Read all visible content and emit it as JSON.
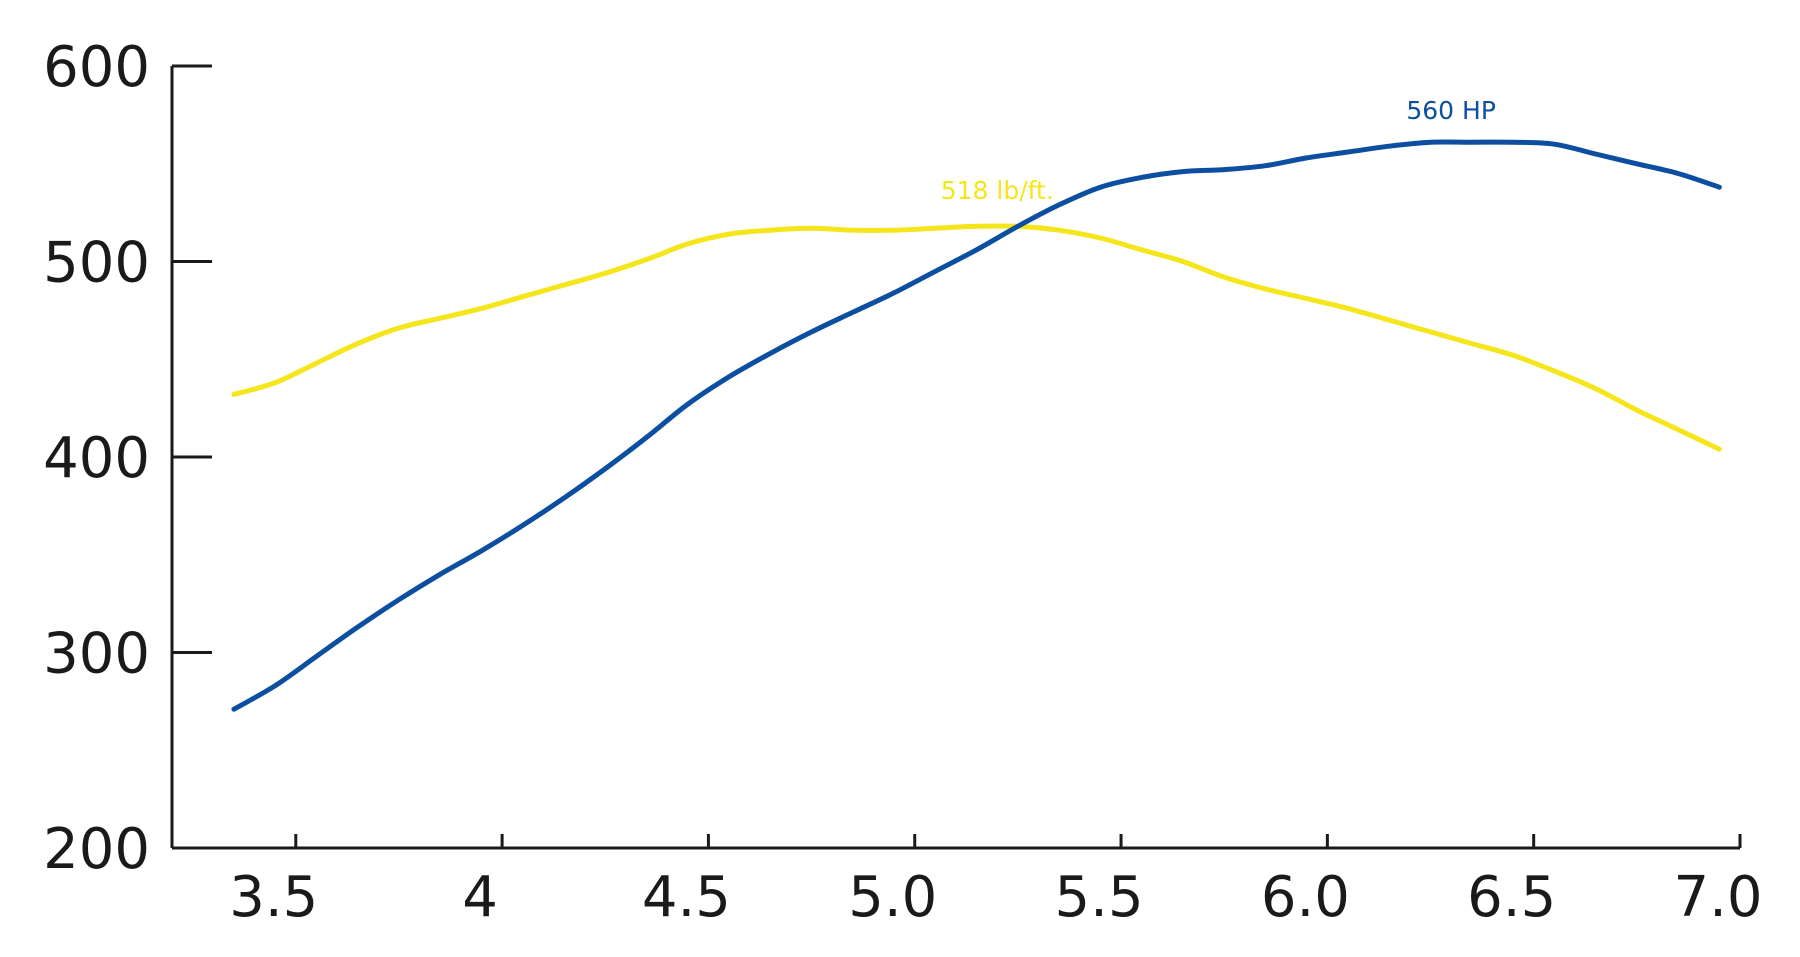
{
  "chart_data": {
    "type": "line",
    "xlim": [
      3.2,
      7.0
    ],
    "ylim": [
      200,
      600
    ],
    "x_ticks": [
      {
        "value": 3.5,
        "label": "3.5"
      },
      {
        "value": 4.0,
        "label": "4"
      },
      {
        "value": 4.5,
        "label": "4.5"
      },
      {
        "value": 5.0,
        "label": "5.0"
      },
      {
        "value": 5.5,
        "label": "5.5"
      },
      {
        "value": 6.0,
        "label": "6.0"
      },
      {
        "value": 6.5,
        "label": "6.5"
      },
      {
        "value": 7.0,
        "label": "7.0"
      }
    ],
    "y_ticks": [
      {
        "value": 200,
        "label": "200"
      },
      {
        "value": 300,
        "label": "300"
      },
      {
        "value": 400,
        "label": "400"
      },
      {
        "value": 500,
        "label": "500"
      },
      {
        "value": 600,
        "label": "600"
      }
    ],
    "grid": false,
    "series": [
      {
        "key": "hp",
        "color": "#0c4fa0",
        "x": [
          3.35,
          3.45,
          3.55,
          3.65,
          3.75,
          3.85,
          3.95,
          4.05,
          4.15,
          4.25,
          4.35,
          4.45,
          4.55,
          4.65,
          4.75,
          4.85,
          4.95,
          5.05,
          5.15,
          5.25,
          5.35,
          5.45,
          5.55,
          5.65,
          5.75,
          5.85,
          5.95,
          6.05,
          6.15,
          6.25,
          6.35,
          6.45,
          6.55,
          6.65,
          6.75,
          6.85,
          6.95
        ],
        "y": [
          271,
          283,
          298,
          313,
          327,
          340,
          352,
          365,
          379,
          394,
          410,
          427,
          441,
          453,
          464,
          474,
          484,
          495,
          506,
          518,
          529,
          538,
          543,
          546,
          547,
          549,
          553,
          556,
          559,
          561,
          561,
          561,
          560,
          555,
          550,
          545,
          538
        ]
      },
      {
        "key": "torque",
        "color": "#f5e51b",
        "x": [
          3.35,
          3.45,
          3.55,
          3.65,
          3.75,
          3.85,
          3.95,
          4.05,
          4.15,
          4.25,
          4.35,
          4.45,
          4.55,
          4.65,
          4.75,
          4.85,
          4.95,
          5.05,
          5.15,
          5.25,
          5.35,
          5.45,
          5.55,
          5.65,
          5.75,
          5.85,
          5.95,
          6.05,
          6.15,
          6.25,
          6.35,
          6.45,
          6.55,
          6.65,
          6.75,
          6.85,
          6.95
        ],
        "y": [
          432,
          438,
          448,
          458,
          466,
          471,
          476,
          482,
          488,
          494,
          501,
          509,
          514,
          516,
          517,
          516,
          516,
          517,
          518,
          518,
          516,
          512,
          506,
          500,
          492,
          486,
          481,
          476,
          470,
          464,
          458,
          452,
          444,
          435,
          424,
          414,
          404
        ]
      }
    ],
    "annotations": [
      {
        "text": "560 HP",
        "x": 6.3,
        "y": 573,
        "color": "#0c4fa0"
      },
      {
        "text": "518 lb/ft.",
        "x": 5.2,
        "y": 532,
        "color": "#f5e51b"
      }
    ]
  }
}
